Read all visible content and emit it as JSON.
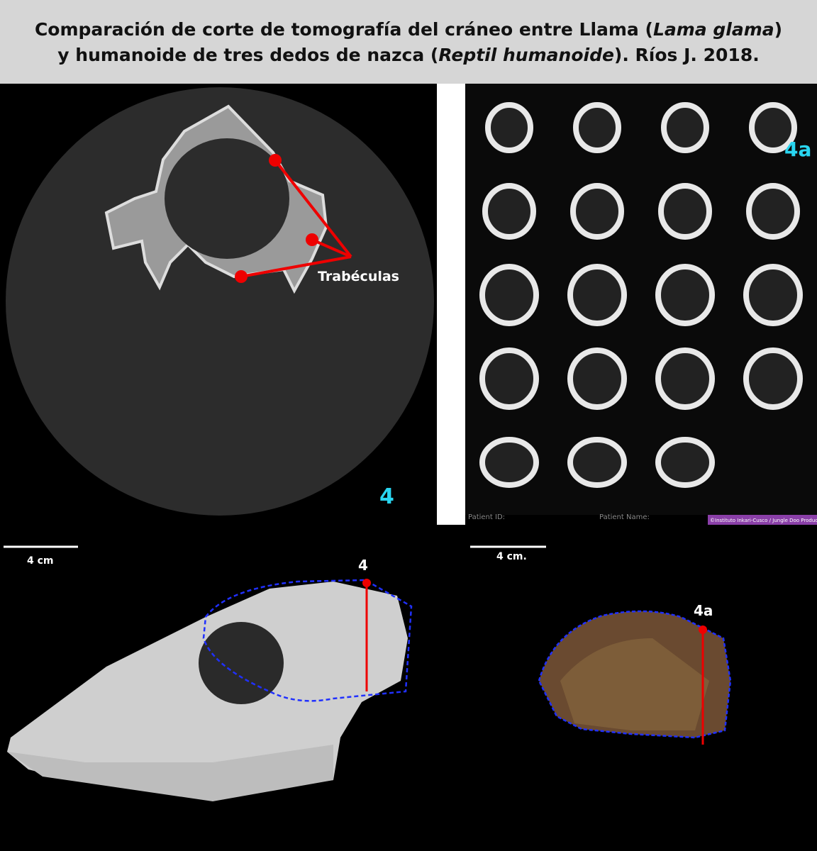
{
  "header": {
    "line1": [
      "Comparación de corte de tomografía del cráneo entre Llama (",
      "Lama glama",
      ")"
    ],
    "line2": [
      "y humanoide de tres dedos de nazca (",
      "Reptil humanoide",
      "). Ríos J. 2018."
    ]
  },
  "ct_llama": {
    "annotation": "Trabéculas",
    "label": "4"
  },
  "ct_humanoid": {
    "label": "4a",
    "patient_id": "Patient ID:",
    "patient_name": "Patient Name:",
    "credit": "©Instituto Inkari-Cusco / Jungle Doo Productions"
  },
  "llama_skull": {
    "scale": "4 cm",
    "marker": "4"
  },
  "humanoid_skull": {
    "scale": "4 cm.",
    "marker": "4a"
  }
}
